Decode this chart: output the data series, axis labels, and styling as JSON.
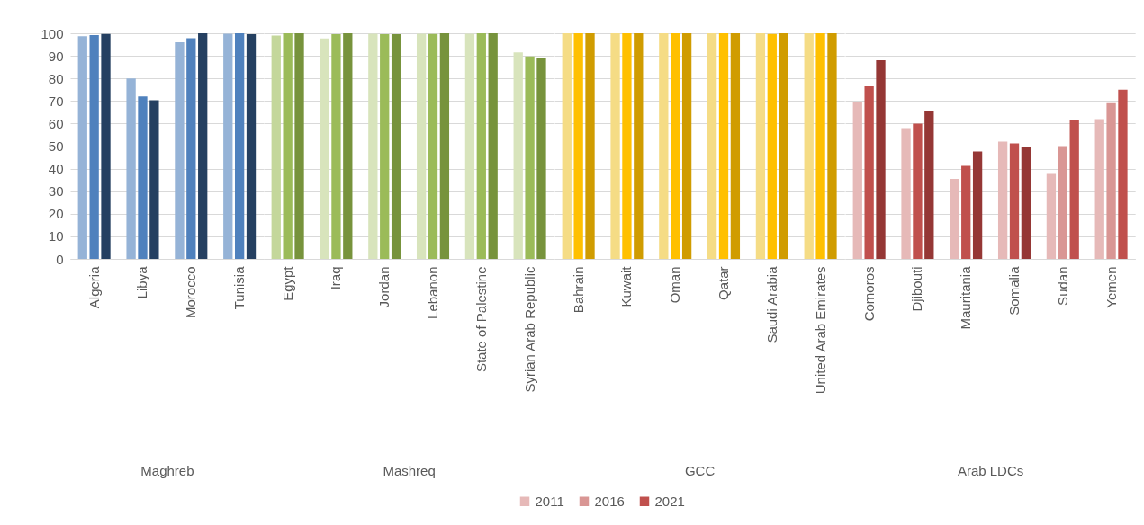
{
  "chart_data": [
    {
      "type": "bar",
      "xlabel": "Maghreb",
      "categories": [
        "Algeria",
        "Libya",
        "Morocco",
        "Tunisia"
      ],
      "ylim": [
        0,
        100
      ],
      "yticks": [
        0,
        10,
        20,
        30,
        40,
        50,
        60,
        70,
        80,
        90,
        100
      ],
      "grid": "y",
      "series": [
        {
          "colors": [
            "#95b3d7",
            "#95b3d7",
            "#95b3d7",
            "#95b3d7"
          ],
          "values": [
            98.7,
            80,
            96,
            99.8
          ]
        },
        {
          "colors": [
            "#4f81bd",
            "#4f81bd",
            "#4f81bd",
            "#4f81bd"
          ],
          "values": [
            99.2,
            72,
            97.8,
            100
          ]
        },
        {
          "colors": [
            "#254061",
            "#254061",
            "#254061",
            "#254061"
          ],
          "values": [
            99.7,
            70.3,
            100,
            99.6
          ]
        }
      ]
    },
    {
      "type": "bar",
      "xlabel": "Mashreq",
      "categories": [
        "Egypt",
        "Iraq",
        "Jordan",
        "Lebanon",
        "State of Palestine",
        "Syrian Arab Republic"
      ],
      "ylim": [
        0,
        100
      ],
      "yticks": [
        0,
        10,
        20,
        30,
        40,
        50,
        60,
        70,
        80,
        90,
        100
      ],
      "grid": "y",
      "tick_labels": "x",
      "series": [
        {
          "colors": [
            "#c4d79b",
            "#d8e4bc",
            "#d8e4bc",
            "#d8e4bc",
            "#d8e4bc",
            "#d8e4bc"
          ],
          "values": [
            99,
            97.7,
            99.8,
            99.8,
            99.8,
            91.5
          ]
        },
        {
          "colors": [
            "#9bbb59",
            "#9bbb59",
            "#9bbb59",
            "#9bbb59",
            "#9bbb59",
            "#9bbb59"
          ],
          "values": [
            100,
            99.6,
            99.6,
            99.7,
            100,
            89.7
          ]
        },
        {
          "colors": [
            "#77933c",
            "#77933c",
            "#77933c",
            "#77933c",
            "#77933c",
            "#77933c"
          ],
          "values": [
            100,
            100,
            99.6,
            100,
            100,
            88.8
          ]
        }
      ]
    },
    {
      "type": "bar",
      "xlabel": "GCC",
      "categories": [
        "Bahrain",
        "Kuwait",
        "Oman",
        "Qatar",
        "Saudi Arabia",
        "United Arab Emirates"
      ],
      "ylim": [
        0,
        100
      ],
      "yticks": [
        0,
        10,
        20,
        30,
        40,
        50,
        60,
        70,
        80,
        90,
        100
      ],
      "grid": "y",
      "tick_labels": "x",
      "series": [
        {
          "colors": [
            "#f5dc85",
            "#f5dc85",
            "#f5dc85",
            "#f5dc85",
            "#f5dc85",
            "#f5dc85"
          ],
          "values": [
            100,
            100,
            100,
            100,
            100,
            100
          ]
        },
        {
          "colors": [
            "#ffc000",
            "#ffc000",
            "#ffc000",
            "#ffc000",
            "#ffc000",
            "#ffc000"
          ],
          "values": [
            100,
            100,
            100,
            100,
            99.7,
            100
          ]
        },
        {
          "colors": [
            "#d09c00",
            "#d09c00",
            "#d09c00",
            "#d09c00",
            "#d09c00",
            "#d09c00"
          ],
          "values": [
            100,
            100,
            100,
            100,
            100,
            100
          ]
        }
      ]
    },
    {
      "type": "bar",
      "xlabel": "Arab LDCs",
      "categories": [
        "Comoros",
        "Djibouti",
        "Mauritania",
        "Somalia",
        "Sudan",
        "Yemen"
      ],
      "ylim": [
        0,
        100
      ],
      "yticks": [
        0,
        10,
        20,
        30,
        40,
        50,
        60,
        70,
        80,
        90,
        100
      ],
      "grid": "y",
      "tick_labels": "x",
      "legend": "bottom",
      "series": [
        {
          "name": "2011",
          "color": "#e6b9b8",
          "colors": [
            "#e6b9b8",
            "#e6b9b8",
            "#e6b9b8",
            "#e6b9b8",
            "#e6b9b8",
            "#e6b9b8"
          ],
          "values": [
            69.5,
            58,
            35.5,
            52,
            38,
            62
          ]
        },
        {
          "name": "2016",
          "color": "#d99694",
          "colors": [
            "#c0504d",
            "#c0504d",
            "#c0504d",
            "#c0504d",
            "#d99694",
            "#d99694"
          ],
          "values": [
            76.5,
            60,
            41.2,
            51.2,
            50,
            69
          ]
        },
        {
          "name": "2021",
          "color": "#c0504d",
          "colors": [
            "#953735",
            "#953735",
            "#953735",
            "#953735",
            "#c0504d",
            "#c0504d"
          ],
          "values": [
            88,
            65.5,
            47.6,
            49.5,
            61.5,
            75
          ]
        }
      ]
    }
  ]
}
